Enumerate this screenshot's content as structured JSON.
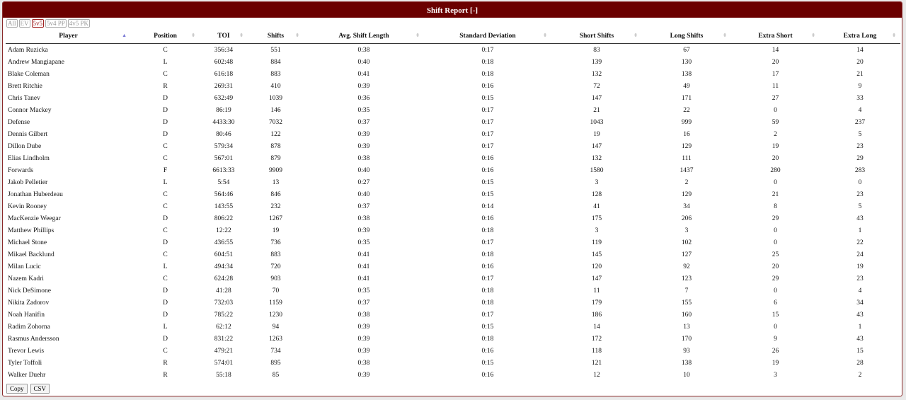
{
  "title": "Shift Report [-]",
  "filters": [
    {
      "label": "All",
      "active": false
    },
    {
      "label": "EV",
      "active": false
    },
    {
      "label": "5v5",
      "active": true
    },
    {
      "label": "5v4 PP",
      "active": false
    },
    {
      "label": "4v5 PK",
      "active": false
    }
  ],
  "columns": [
    "Player",
    "Position",
    "TOI",
    "Shifts",
    "Avg. Shift Length",
    "Standard Deviation",
    "Short Shifts",
    "Long Shifts",
    "Extra Short",
    "Extra Long"
  ],
  "sort": {
    "column": "Player",
    "direction": "ascending"
  },
  "rows": [
    [
      "Adam Ruzicka",
      "C",
      "356:34",
      "551",
      "0:38",
      "0:17",
      "83",
      "67",
      "14",
      "14"
    ],
    [
      "Andrew Mangiapane",
      "L",
      "602:48",
      "884",
      "0:40",
      "0:18",
      "139",
      "130",
      "20",
      "20"
    ],
    [
      "Blake Coleman",
      "C",
      "616:18",
      "883",
      "0:41",
      "0:18",
      "132",
      "138",
      "17",
      "21"
    ],
    [
      "Brett Ritchie",
      "R",
      "269:31",
      "410",
      "0:39",
      "0:16",
      "72",
      "49",
      "11",
      "9"
    ],
    [
      "Chris Tanev",
      "D",
      "632:49",
      "1039",
      "0:36",
      "0:15",
      "147",
      "171",
      "27",
      "33"
    ],
    [
      "Connor Mackey",
      "D",
      "86:19",
      "146",
      "0:35",
      "0:17",
      "21",
      "22",
      "0",
      "4"
    ],
    [
      "Defense",
      "D",
      "4433:30",
      "7032",
      "0:37",
      "0:17",
      "1043",
      "999",
      "59",
      "237"
    ],
    [
      "Dennis Gilbert",
      "D",
      "80:46",
      "122",
      "0:39",
      "0:17",
      "19",
      "16",
      "2",
      "5"
    ],
    [
      "Dillon Dube",
      "C",
      "579:34",
      "878",
      "0:39",
      "0:17",
      "147",
      "129",
      "19",
      "23"
    ],
    [
      "Elias Lindholm",
      "C",
      "567:01",
      "879",
      "0:38",
      "0:16",
      "132",
      "111",
      "20",
      "29"
    ],
    [
      "Forwards",
      "F",
      "6613:33",
      "9909",
      "0:40",
      "0:16",
      "1580",
      "1437",
      "280",
      "283"
    ],
    [
      "Jakob Pelletier",
      "L",
      "5:54",
      "13",
      "0:27",
      "0:15",
      "3",
      "2",
      "0",
      "0"
    ],
    [
      "Jonathan Huberdeau",
      "C",
      "564:46",
      "846",
      "0:40",
      "0:15",
      "128",
      "129",
      "21",
      "23"
    ],
    [
      "Kevin Rooney",
      "C",
      "143:55",
      "232",
      "0:37",
      "0:14",
      "41",
      "34",
      "8",
      "5"
    ],
    [
      "MacKenzie Weegar",
      "D",
      "806:22",
      "1267",
      "0:38",
      "0:16",
      "175",
      "206",
      "29",
      "43"
    ],
    [
      "Matthew Phillips",
      "C",
      "12:22",
      "19",
      "0:39",
      "0:18",
      "3",
      "3",
      "0",
      "1"
    ],
    [
      "Michael Stone",
      "D",
      "436:55",
      "736",
      "0:35",
      "0:17",
      "119",
      "102",
      "0",
      "22"
    ],
    [
      "Mikael Backlund",
      "C",
      "604:51",
      "883",
      "0:41",
      "0:18",
      "145",
      "127",
      "25",
      "24"
    ],
    [
      "Milan Lucic",
      "L",
      "494:34",
      "720",
      "0:41",
      "0:16",
      "120",
      "92",
      "20",
      "19"
    ],
    [
      "Nazem Kadri",
      "C",
      "624:28",
      "903",
      "0:41",
      "0:17",
      "147",
      "123",
      "29",
      "23"
    ],
    [
      "Nick DeSimone",
      "D",
      "41:28",
      "70",
      "0:35",
      "0:18",
      "11",
      "7",
      "0",
      "4"
    ],
    [
      "Nikita Zadorov",
      "D",
      "732:03",
      "1159",
      "0:37",
      "0:18",
      "179",
      "155",
      "6",
      "34"
    ],
    [
      "Noah Hanifin",
      "D",
      "785:22",
      "1230",
      "0:38",
      "0:17",
      "186",
      "160",
      "15",
      "43"
    ],
    [
      "Radim Zohorna",
      "L",
      "62:12",
      "94",
      "0:39",
      "0:15",
      "14",
      "13",
      "0",
      "1"
    ],
    [
      "Rasmus Andersson",
      "D",
      "831:22",
      "1263",
      "0:39",
      "0:18",
      "172",
      "170",
      "9",
      "43"
    ],
    [
      "Trevor Lewis",
      "C",
      "479:21",
      "734",
      "0:39",
      "0:16",
      "118",
      "93",
      "26",
      "15"
    ],
    [
      "Tyler Toffoli",
      "R",
      "574:01",
      "895",
      "0:38",
      "0:15",
      "121",
      "138",
      "19",
      "28"
    ],
    [
      "Walker Duehr",
      "R",
      "55:18",
      "85",
      "0:39",
      "0:16",
      "12",
      "10",
      "3",
      "2"
    ]
  ],
  "buttons": {
    "copy": "Copy",
    "csv": "CSV"
  },
  "colors": {
    "titlebar": "#6b0000",
    "active_filter": "#a02020"
  }
}
